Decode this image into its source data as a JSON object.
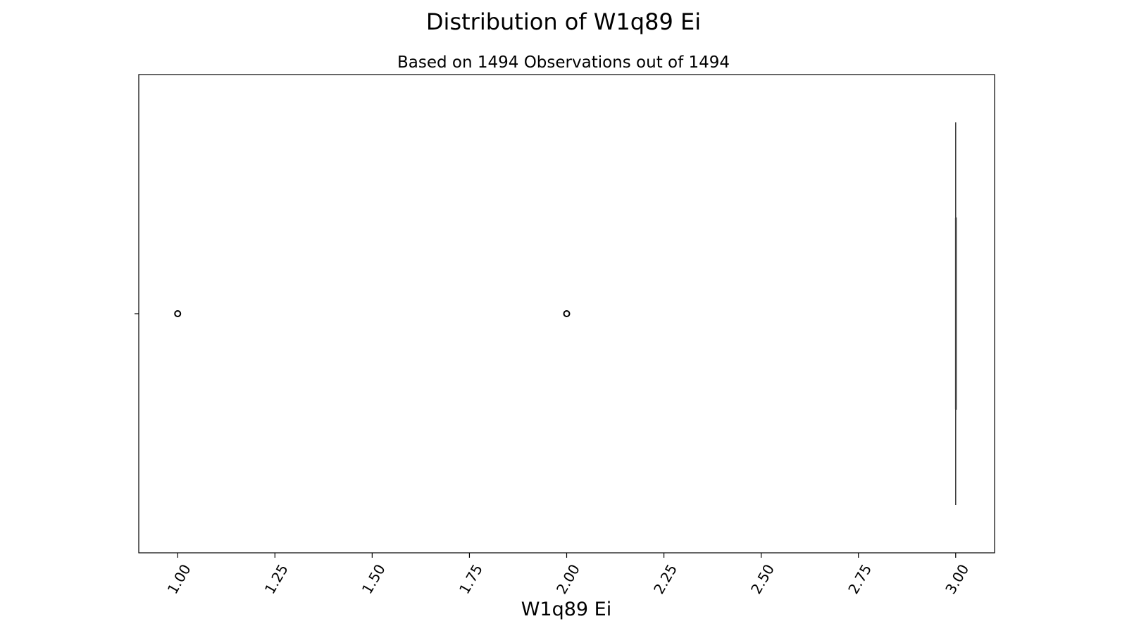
{
  "chart_data": {
    "type": "boxplot",
    "orientation": "horizontal",
    "title": "Distribution of W1q89 Ei",
    "subtitle": "Based on 1494 Observations out of 1494",
    "xlabel": "W1q89 Ei",
    "ylabel": "",
    "xlim": [
      0.9,
      3.1
    ],
    "xticks": [
      1.0,
      1.25,
      1.5,
      1.75,
      2.0,
      2.25,
      2.5,
      2.75,
      3.0
    ],
    "xtick_labels": [
      "1.00",
      "1.25",
      "1.50",
      "1.75",
      "2.00",
      "2.25",
      "2.50",
      "2.75",
      "3.00"
    ],
    "xtick_rotation_deg": 60,
    "grid": false,
    "box": {
      "q1": 3.0,
      "median": 3.0,
      "q3": 3.0,
      "whisker_low": 3.0,
      "whisker_high": 3.0
    },
    "outliers": [
      1.0,
      2.0
    ],
    "colors": {
      "box_edge": "#3f3f3f",
      "outlier_edge": "#000000",
      "axes": "#000000"
    }
  }
}
